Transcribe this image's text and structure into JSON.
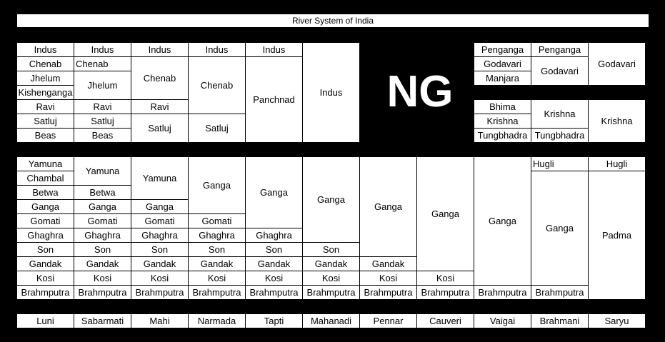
{
  "title": "River System of India",
  "logo_text": "NG",
  "indus_system": [
    [
      "Indus",
      "Chenab",
      "Jhelum",
      "Kishenganga",
      "Ravi",
      "Satluj",
      "Beas"
    ],
    [
      "Indus",
      "Chenab",
      "Jhelum",
      "Ravi",
      "Satluj",
      "Beas"
    ],
    [
      "Indus",
      "Chenab",
      "Ravi",
      "Satluj"
    ],
    [
      "Indus",
      "Chenab",
      "Satluj"
    ],
    [
      "Indus",
      "Panchnad"
    ],
    [
      "Indus"
    ]
  ],
  "godavari_system": [
    [
      "Penganga",
      "Godavari",
      "Manjara"
    ],
    [
      "Penganga",
      "Godavari"
    ],
    [
      "Godavari"
    ]
  ],
  "krishna_system": [
    [
      "Bhima",
      "Krishna",
      "Tungbhadra"
    ],
    [
      "Krishna",
      "Tungbhadra"
    ],
    [
      "Krishna"
    ]
  ],
  "ganga_system": [
    [
      "Yamuna",
      "Chambal",
      "Betwa",
      "Ganga",
      "Gomati",
      "Ghaghra",
      "Son",
      "Gandak",
      "Kosi",
      "Brahmputra"
    ],
    [
      "Yamuna",
      "Betwa",
      "Ganga",
      "Gomati",
      "Ghaghra",
      "Son",
      "Gandak",
      "Kosi",
      "Brahmputra"
    ],
    [
      "Yamuna",
      "Ganga",
      "Gomati",
      "Ghaghra",
      "Son",
      "Gandak",
      "Kosi",
      "Brahmputra"
    ],
    [
      "Ganga",
      "Gomati",
      "Ghaghra",
      "Son",
      "Gandak",
      "Kosi",
      "Brahmputra"
    ],
    [
      "Ganga",
      "Ghaghra",
      "Son",
      "Gandak",
      "Kosi",
      "Brahmputra"
    ],
    [
      "Ganga",
      "Son",
      "Gandak",
      "Kosi",
      "Brahmputra"
    ],
    [
      "Ganga",
      "Gandak",
      "Kosi",
      "Brahmputra"
    ],
    [
      "Ganga",
      "Kosi",
      "Brahmputra"
    ],
    [
      "Ganga",
      "Brahmputra"
    ],
    [
      "Hugli",
      "Ganga",
      "Brahmputra"
    ],
    [
      "Hugli",
      "Padma"
    ]
  ],
  "other_rivers": [
    "Luni",
    "Sabarmati",
    "Mahi",
    "Narmada",
    "Tapti",
    "Mahanadi",
    "Pennar",
    "Cauveri",
    "Vaigai",
    "Brahmani",
    "Saryu"
  ]
}
